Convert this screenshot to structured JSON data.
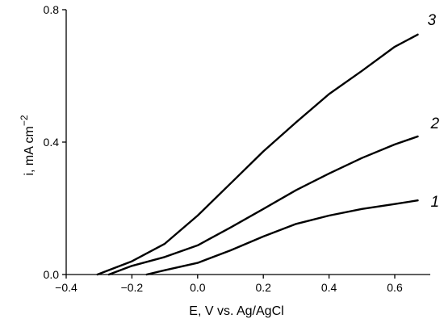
{
  "chart_data": {
    "type": "line",
    "xlabel": "E, V vs. Ag/AgCl",
    "ylabel_main": "i, mA cm",
    "ylabel_sup": "−2",
    "xlim": [
      -0.4,
      0.7
    ],
    "ylim": [
      0.0,
      0.8
    ],
    "x_ticks": [
      -0.4,
      -0.2,
      0.0,
      0.2,
      0.4,
      0.6
    ],
    "x_tick_labels": [
      "−0.4",
      "−0.2",
      "0.0",
      "0.2",
      "0.4",
      "0.6"
    ],
    "y_ticks": [
      0.0,
      0.4,
      0.8
    ],
    "y_tick_labels": [
      "0.0",
      "0.4",
      "0.8"
    ],
    "grid": false,
    "legend": "none",
    "series": [
      {
        "label": "1",
        "x": [
          -0.155,
          -0.1,
          0.0,
          0.1,
          0.2,
          0.3,
          0.4,
          0.5,
          0.6,
          0.67
        ],
        "y": [
          0.0,
          0.013,
          0.035,
          0.073,
          0.115,
          0.153,
          0.178,
          0.198,
          0.213,
          0.224
        ]
      },
      {
        "label": "2",
        "x": [
          -0.27,
          -0.2,
          -0.1,
          0.0,
          0.1,
          0.2,
          0.3,
          0.4,
          0.5,
          0.6,
          0.67
        ],
        "y": [
          0.0,
          0.026,
          0.053,
          0.088,
          0.142,
          0.198,
          0.255,
          0.305,
          0.352,
          0.393,
          0.417
        ]
      },
      {
        "label": "3",
        "x": [
          -0.305,
          -0.2,
          -0.1,
          0.0,
          0.1,
          0.2,
          0.3,
          0.4,
          0.5,
          0.6,
          0.67
        ],
        "y": [
          0.0,
          0.04,
          0.093,
          0.178,
          0.275,
          0.372,
          0.46,
          0.545,
          0.615,
          0.688,
          0.725
        ]
      }
    ]
  }
}
